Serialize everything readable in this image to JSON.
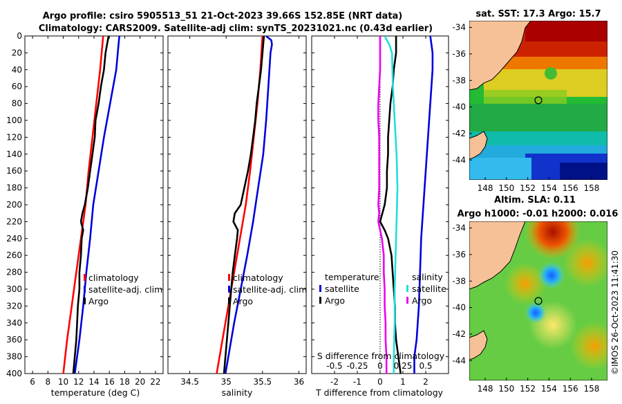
{
  "chart_data": {
    "type": "line",
    "title_line1": "Argo profile: csiro 5905513_51 21-Oct-2023 39.66S 152.85E (NRT data)",
    "title_line2": "Climatology: CARS2009. Satellite-adj clim: synTS_20231021.nc (0.43d earlier)",
    "depth_axis": {
      "ylim": [
        400,
        0
      ],
      "ticks": [
        0,
        20,
        40,
        60,
        80,
        100,
        120,
        140,
        160,
        180,
        200,
        220,
        240,
        260,
        280,
        300,
        320,
        340,
        360,
        380,
        400
      ]
    },
    "panels": [
      {
        "id": "temperature",
        "xlabel": "temperature (deg C)",
        "xlim": [
          5,
          23
        ],
        "xticks": [
          6,
          8,
          10,
          12,
          14,
          16,
          18,
          20,
          22
        ],
        "legend": [
          "climatology",
          "satellite-adj. clim",
          "Argo"
        ],
        "series": [
          {
            "name": "climatology",
            "color": "#ff0000",
            "depth": [
              0,
              40,
              80,
              120,
              160,
              200,
              240,
              280,
              320,
              360,
              400
            ],
            "values": [
              15.2,
              14.8,
              14.3,
              13.8,
              13.3,
              12.9,
              12.3,
              11.7,
              11.1,
              10.5,
              10.0
            ]
          },
          {
            "name": "satellite-adj. clim",
            "color": "#0000dd",
            "depth": [
              0,
              20,
              40,
              80,
              120,
              160,
              200,
              240,
              280,
              320,
              360,
              400
            ],
            "values": [
              17.3,
              17.1,
              16.9,
              16.1,
              15.3,
              14.6,
              13.9,
              13.5,
              13.0,
              12.6,
              12.1,
              11.5
            ]
          },
          {
            "name": "Argo",
            "color": "#000000",
            "depth": [
              0,
              10,
              20,
              40,
              60,
              80,
              100,
              120,
              140,
              160,
              180,
              200,
              210,
              220,
              230,
              240,
              260,
              280,
              300,
              320,
              340,
              360,
              380,
              400
            ],
            "values": [
              15.9,
              15.7,
              15.5,
              15.3,
              14.9,
              14.6,
              14.2,
              14.1,
              13.8,
              13.5,
              13.2,
              12.8,
              12.5,
              12.3,
              12.6,
              12.4,
              12.3,
              12.1,
              12.1,
              11.9,
              11.8,
              11.7,
              11.5,
              11.3
            ]
          }
        ]
      },
      {
        "id": "salinity",
        "xlabel": "salinity",
        "xlim": [
          34.2,
          36.1
        ],
        "xticks": [
          34.5,
          35,
          35.5,
          36
        ],
        "legend": [
          "climatology",
          "satellite-adj. clim",
          "Argo"
        ],
        "series": [
          {
            "name": "climatology",
            "color": "#ff0000",
            "depth": [
              0,
              40,
              80,
              120,
              160,
              200,
              240,
              280,
              320,
              360,
              400
            ],
            "values": [
              35.5,
              35.47,
              35.43,
              35.38,
              35.33,
              35.27,
              35.19,
              35.11,
              35.03,
              34.95,
              34.87
            ]
          },
          {
            "name": "satellite-adj. clim",
            "color": "#0000dd",
            "depth": [
              0,
              5,
              10,
              20,
              60,
              100,
              140,
              180,
              220,
              260,
              300,
              340,
              380,
              400
            ],
            "values": [
              35.55,
              35.62,
              35.63,
              35.61,
              35.58,
              35.55,
              35.51,
              35.44,
              35.37,
              35.29,
              35.2,
              35.11,
              35.03,
              34.99
            ]
          },
          {
            "name": "Argo",
            "color": "#000000",
            "depth": [
              0,
              20,
              40,
              60,
              80,
              100,
              120,
              140,
              160,
              180,
              200,
              210,
              220,
              230,
              240,
              260,
              280,
              300,
              320,
              340,
              360,
              380,
              400
            ],
            "values": [
              35.52,
              35.5,
              35.48,
              35.45,
              35.42,
              35.4,
              35.37,
              35.34,
              35.3,
              35.25,
              35.2,
              35.12,
              35.1,
              35.16,
              35.15,
              35.12,
              35.09,
              35.07,
              35.05,
              35.03,
              35.01,
              34.99,
              34.97
            ]
          }
        ]
      },
      {
        "id": "difference",
        "xlabel": "T difference from climatology",
        "xlabel_top": "S difference from climatology",
        "xlim": [
          -3,
          3
        ],
        "xticks": [
          -2,
          -1,
          0,
          1,
          2
        ],
        "xticks_top": [
          -0.5,
          -0.25,
          0,
          0.25,
          0.5
        ],
        "legend_title_t": "temperature",
        "legend_title_s": "salinity",
        "legend": [
          "satellite",
          "Argo"
        ],
        "series": [
          {
            "name": "T satellite",
            "color": "#0000dd",
            "depth": [
              0,
              10,
              20,
              40,
              80,
              120,
              160,
              200,
              240,
              280,
              320,
              360,
              380,
              400
            ],
            "values": [
              2.2,
              2.25,
              2.3,
              2.3,
              2.2,
              2.1,
              2.0,
              1.9,
              1.8,
              1.75,
              1.7,
              1.6,
              1.5,
              1.5
            ]
          },
          {
            "name": "T Argo",
            "color": "#000000",
            "depth": [
              0,
              20,
              40,
              60,
              80,
              100,
              120,
              140,
              160,
              180,
              200,
              210,
              220,
              230,
              240,
              260,
              280,
              300,
              320,
              340,
              360,
              380,
              400
            ],
            "values": [
              0.7,
              0.7,
              0.6,
              0.55,
              0.45,
              0.4,
              0.35,
              0.35,
              0.3,
              0.3,
              0.2,
              0.1,
              0.0,
              0.2,
              0.35,
              0.5,
              0.55,
              0.6,
              0.65,
              0.65,
              0.7,
              0.8,
              0.9
            ]
          },
          {
            "name": "S satellite",
            "color": "#22dddd",
            "depth": [
              0,
              10,
              20,
              60,
              100,
              140,
              180,
              220,
              260,
              300,
              340,
              380,
              400
            ],
            "values": [
              0.05,
              0.1,
              0.13,
              0.14,
              0.16,
              0.18,
              0.19,
              0.18,
              0.17,
              0.16,
              0.16,
              0.15,
              0.15
            ]
          },
          {
            "name": "S Argo",
            "color": "#ee00ee",
            "depth": [
              0,
              20,
              40,
              60,
              80,
              100,
              120,
              140,
              160,
              180,
              200,
              210,
              220,
              230,
              240,
              260,
              280,
              300,
              320,
              340,
              360,
              380,
              400
            ],
            "values": [
              0.0,
              0.0,
              0.0,
              -0.01,
              -0.02,
              -0.02,
              -0.01,
              -0.01,
              -0.01,
              -0.01,
              -0.02,
              -0.01,
              -0.02,
              0.0,
              0.02,
              0.04,
              0.04,
              0.05,
              0.05,
              0.06,
              0.06,
              0.07,
              0.07
            ]
          }
        ]
      }
    ],
    "maps": [
      {
        "id": "sst-map",
        "title": "sat. SST: 17.3 Argo: 15.7",
        "xticks": [
          148,
          150,
          152,
          154,
          156,
          158
        ],
        "yticks": [
          -34,
          -36,
          -38,
          -40,
          -42,
          -44
        ],
        "xlim": [
          146.5,
          159.5
        ],
        "ylim": [
          -45.5,
          -33.5
        ],
        "marker": {
          "lon": 152.85,
          "lat": -39.66
        }
      },
      {
        "id": "sla-map",
        "title_line1": "Altim. SLA: 0.11",
        "title_line2": "Argo h1000: -0.01 h2000: 0.016",
        "xticks": [
          148,
          150,
          152,
          154,
          156,
          158
        ],
        "yticks": [
          -34,
          -36,
          -38,
          -40,
          -42,
          -44
        ],
        "xlim": [
          146.5,
          159.5
        ],
        "ylim": [
          -45.5,
          -33.5
        ],
        "marker": {
          "lon": 152.85,
          "lat": -39.66
        }
      }
    ],
    "stamp": "©IMOS 26-Oct-2023 11:41:30"
  }
}
